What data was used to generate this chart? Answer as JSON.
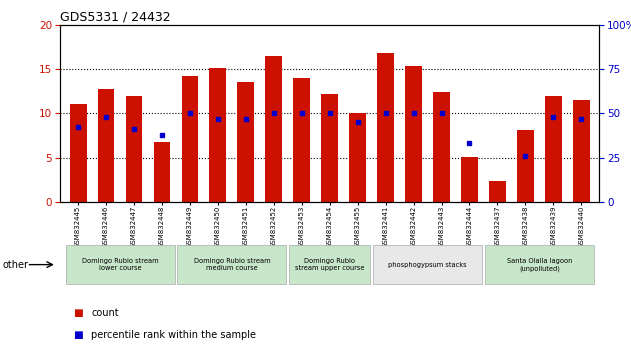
{
  "title": "GDS5331 / 24432",
  "samples": [
    "GSM832445",
    "GSM832446",
    "GSM832447",
    "GSM832448",
    "GSM832449",
    "GSM832450",
    "GSM832451",
    "GSM832452",
    "GSM832453",
    "GSM832454",
    "GSM832455",
    "GSM832441",
    "GSM832442",
    "GSM832443",
    "GSM832444",
    "GSM832437",
    "GSM832438",
    "GSM832439",
    "GSM832440"
  ],
  "counts": [
    11.0,
    12.8,
    12.0,
    6.8,
    14.2,
    15.1,
    13.5,
    16.5,
    14.0,
    12.2,
    10.0,
    16.8,
    15.3,
    12.4,
    5.1,
    2.4,
    8.1,
    12.0,
    11.5
  ],
  "percentiles": [
    42,
    48,
    41,
    38,
    50,
    47,
    47,
    50,
    50,
    50,
    45,
    50,
    50,
    50,
    33,
    null,
    26,
    48,
    47
  ],
  "groups": [
    {
      "label": "Domingo Rubio stream\nlower course",
      "start": 0,
      "end": 3,
      "color": "#c8e6c9"
    },
    {
      "label": "Domingo Rubio stream\nmedium course",
      "start": 4,
      "end": 7,
      "color": "#c8e6c9"
    },
    {
      "label": "Domingo Rubio\nstream upper course",
      "start": 8,
      "end": 10,
      "color": "#c8e6c9"
    },
    {
      "label": "phosphogypsum stacks",
      "start": 11,
      "end": 14,
      "color": "#e8e8e8"
    },
    {
      "label": "Santa Olalla lagoon\n(unpolluted)",
      "start": 15,
      "end": 18,
      "color": "#c8e6c9"
    }
  ],
  "bar_color": "#cc1100",
  "dot_color": "#0000cc",
  "left_ylim": [
    0,
    20
  ],
  "right_ylim": [
    0,
    100
  ],
  "left_yticks": [
    0,
    5,
    10,
    15,
    20
  ],
  "right_yticks": [
    0,
    25,
    50,
    75,
    100
  ],
  "left_tick_color": "#cc1100",
  "right_tick_color": "#0000cc",
  "grid_yticks": [
    5,
    10,
    15
  ],
  "background_color": "#ffffff",
  "bar_width": 0.6,
  "other_label": "other"
}
